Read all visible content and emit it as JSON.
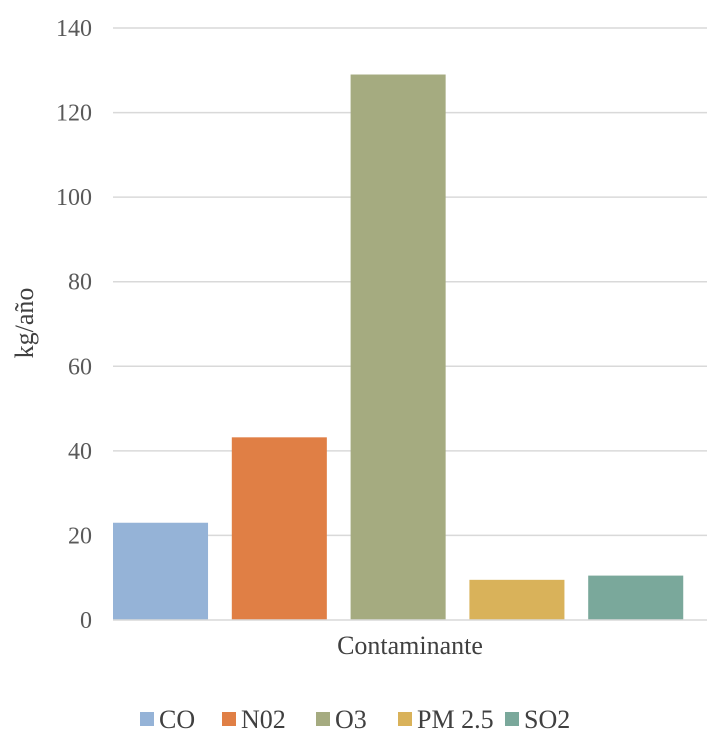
{
  "chart_data": {
    "type": "bar",
    "title": "",
    "xlabel": "Contaminante",
    "ylabel": "kg/año",
    "ylim": [
      0,
      140
    ],
    "yticks": [
      "0",
      "20",
      "40",
      "60",
      "80",
      "100",
      "120",
      "140"
    ],
    "grid": true,
    "legend_position": "bottom",
    "series": [
      {
        "name": "CO",
        "values": [
          23
        ],
        "color": "#95b3d7"
      },
      {
        "name": "N02",
        "values": [
          43.2
        ],
        "color": "#e07f45"
      },
      {
        "name": "O3",
        "values": [
          129
        ],
        "color": "#a5ab80"
      },
      {
        "name": "PM 2.5",
        "values": [
          9.5
        ],
        "color": "#d9b25a"
      },
      {
        "name": "SO2",
        "values": [
          10.5
        ],
        "color": "#7aa89b"
      }
    ]
  }
}
